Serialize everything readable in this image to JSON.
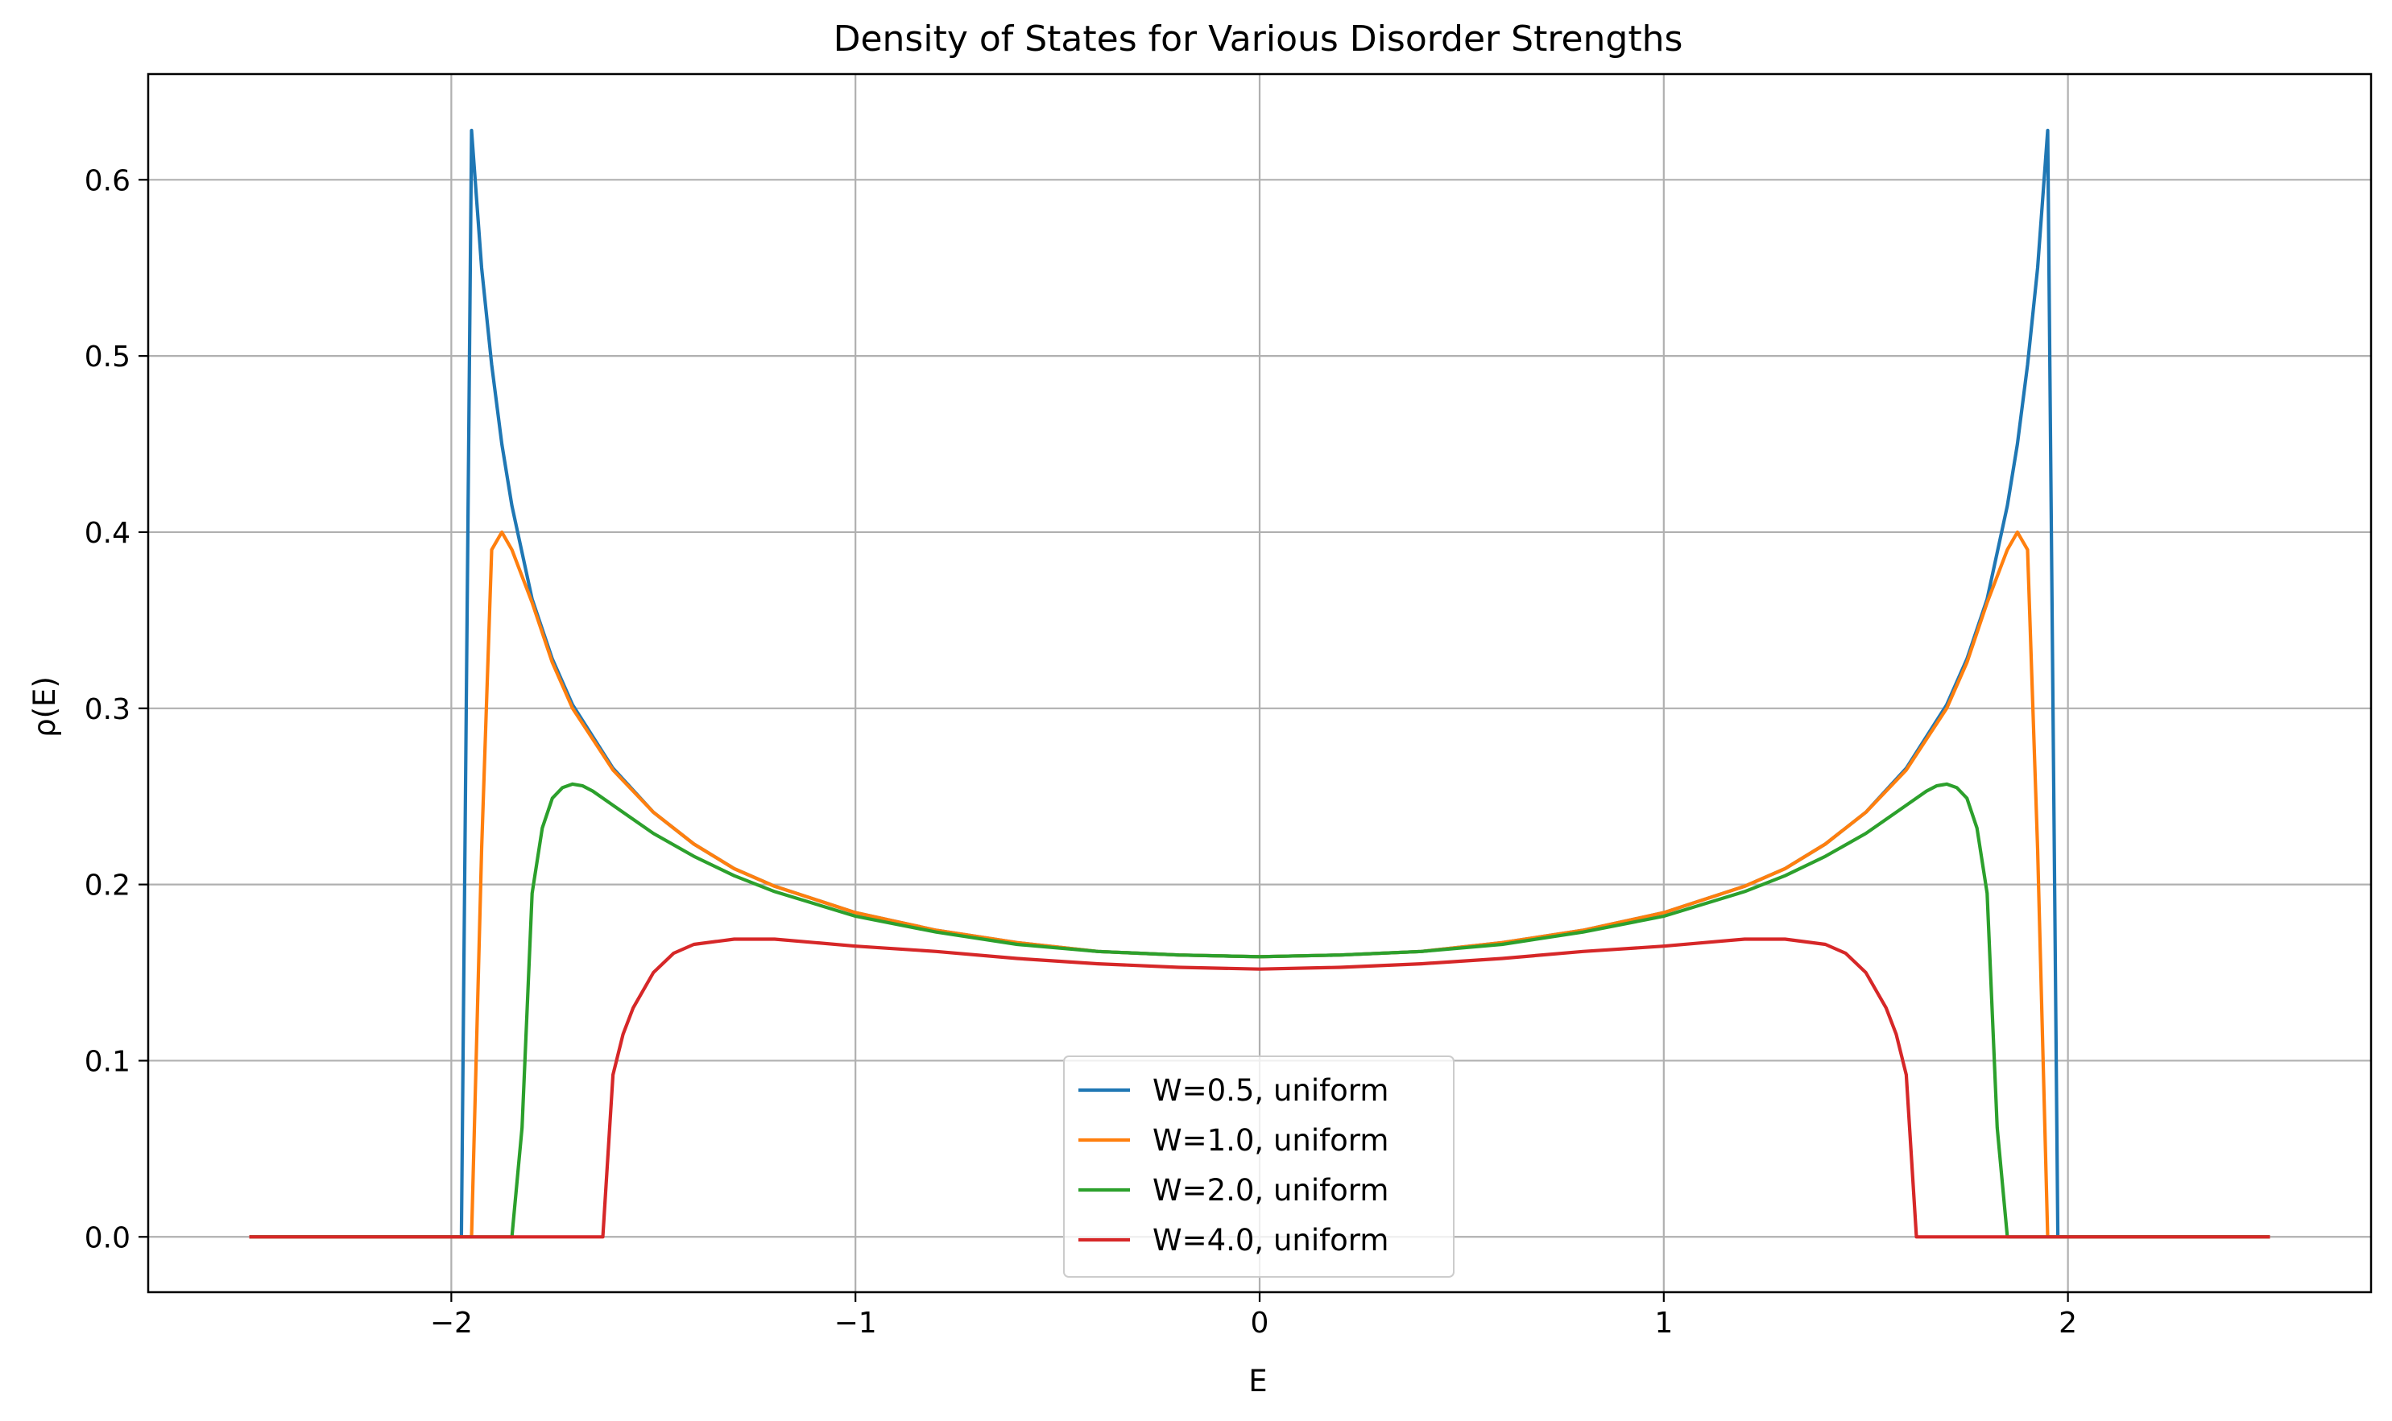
{
  "chart_data": {
    "type": "line",
    "title": "Density of States for Various Disorder Strengths",
    "xlabel": "E",
    "ylabel": "ρ(E)",
    "xlim": [
      -2.75,
      2.75
    ],
    "ylim": [
      -0.0314,
      0.66
    ],
    "xticks": [
      -2,
      -1,
      0,
      1,
      2
    ],
    "xtick_labels": [
      "−2",
      "−1",
      "0",
      "1",
      "2"
    ],
    "yticks": [
      0.0,
      0.1,
      0.2,
      0.3,
      0.4,
      0.5,
      0.6
    ],
    "ytick_labels": [
      "0.0",
      "0.1",
      "0.2",
      "0.3",
      "0.4",
      "0.5",
      "0.6"
    ],
    "grid": true,
    "legend_position": "lower center",
    "series": [
      {
        "name": "W=0.5, uniform",
        "color": "#1f77b4",
        "x": [
          -2.5,
          -1.975,
          -1.95,
          -1.925,
          -1.9,
          -1.875,
          -1.85,
          -1.8,
          -1.75,
          -1.7,
          -1.6,
          -1.5,
          -1.4,
          -1.3,
          -1.2,
          -1.0,
          -0.8,
          -0.6,
          -0.4,
          -0.2,
          0.0,
          0.2,
          0.4,
          0.6,
          0.8,
          1.0,
          1.2,
          1.3,
          1.4,
          1.5,
          1.6,
          1.7,
          1.75,
          1.8,
          1.85,
          1.875,
          1.9,
          1.925,
          1.95,
          1.975,
          2.5
        ],
        "y": [
          0.0,
          0.0,
          0.628,
          0.55,
          0.495,
          0.45,
          0.415,
          0.362,
          0.328,
          0.302,
          0.266,
          0.241,
          0.223,
          0.209,
          0.199,
          0.184,
          0.174,
          0.167,
          0.162,
          0.16,
          0.159,
          0.16,
          0.162,
          0.167,
          0.174,
          0.184,
          0.199,
          0.209,
          0.223,
          0.241,
          0.266,
          0.302,
          0.328,
          0.362,
          0.415,
          0.45,
          0.495,
          0.55,
          0.628,
          0.0,
          0.0
        ]
      },
      {
        "name": "W=1.0, uniform",
        "color": "#ff7f0e",
        "x": [
          -2.5,
          -1.95,
          -1.925,
          -1.9,
          -1.875,
          -1.85,
          -1.8,
          -1.75,
          -1.7,
          -1.6,
          -1.5,
          -1.4,
          -1.3,
          -1.2,
          -1.0,
          -0.8,
          -0.6,
          -0.4,
          -0.2,
          0.0,
          0.2,
          0.4,
          0.6,
          0.8,
          1.0,
          1.2,
          1.3,
          1.4,
          1.5,
          1.6,
          1.7,
          1.75,
          1.8,
          1.85,
          1.875,
          1.9,
          1.925,
          1.95,
          2.5
        ],
        "y": [
          0.0,
          0.0,
          0.22,
          0.39,
          0.4,
          0.39,
          0.36,
          0.326,
          0.3,
          0.265,
          0.241,
          0.223,
          0.209,
          0.199,
          0.184,
          0.174,
          0.167,
          0.162,
          0.16,
          0.159,
          0.16,
          0.162,
          0.167,
          0.174,
          0.184,
          0.199,
          0.209,
          0.223,
          0.241,
          0.265,
          0.3,
          0.326,
          0.36,
          0.39,
          0.4,
          0.39,
          0.22,
          0.0,
          0.0
        ]
      },
      {
        "name": "W=2.0, uniform",
        "color": "#2ca02c",
        "x": [
          -2.5,
          -1.85,
          -1.825,
          -1.8,
          -1.775,
          -1.75,
          -1.725,
          -1.7,
          -1.675,
          -1.65,
          -1.6,
          -1.5,
          -1.4,
          -1.3,
          -1.2,
          -1.0,
          -0.8,
          -0.6,
          -0.4,
          -0.2,
          0.0,
          0.2,
          0.4,
          0.6,
          0.8,
          1.0,
          1.2,
          1.3,
          1.4,
          1.5,
          1.6,
          1.65,
          1.675,
          1.7,
          1.725,
          1.75,
          1.775,
          1.8,
          1.825,
          1.85,
          2.5
        ],
        "y": [
          0.0,
          0.0,
          0.062,
          0.195,
          0.232,
          0.249,
          0.255,
          0.257,
          0.256,
          0.253,
          0.245,
          0.229,
          0.216,
          0.205,
          0.196,
          0.182,
          0.173,
          0.166,
          0.162,
          0.16,
          0.159,
          0.16,
          0.162,
          0.166,
          0.173,
          0.182,
          0.196,
          0.205,
          0.216,
          0.229,
          0.245,
          0.253,
          0.256,
          0.257,
          0.255,
          0.249,
          0.232,
          0.195,
          0.062,
          0.0,
          0.0
        ]
      },
      {
        "name": "W=4.0, uniform",
        "color": "#d62728",
        "x": [
          -2.5,
          -1.625,
          -1.6,
          -1.575,
          -1.55,
          -1.5,
          -1.45,
          -1.4,
          -1.3,
          -1.2,
          -1.1,
          -1.0,
          -0.8,
          -0.6,
          -0.4,
          -0.2,
          0.0,
          0.2,
          0.4,
          0.6,
          0.8,
          1.0,
          1.1,
          1.2,
          1.3,
          1.4,
          1.45,
          1.5,
          1.55,
          1.575,
          1.6,
          1.625,
          2.5
        ],
        "y": [
          0.0,
          0.0,
          0.092,
          0.115,
          0.13,
          0.15,
          0.161,
          0.166,
          0.169,
          0.169,
          0.167,
          0.165,
          0.162,
          0.158,
          0.155,
          0.153,
          0.152,
          0.153,
          0.155,
          0.158,
          0.162,
          0.165,
          0.167,
          0.169,
          0.169,
          0.166,
          0.161,
          0.15,
          0.13,
          0.115,
          0.092,
          0.0,
          0.0
        ]
      }
    ]
  }
}
